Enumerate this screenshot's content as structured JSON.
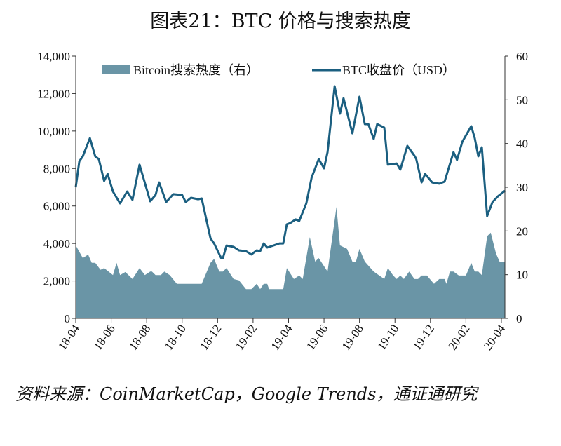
{
  "title": "图表21：BTC 价格与搜索热度",
  "source": "资料来源：CoinMarketCap，Google Trends，通证通研究",
  "colors": {
    "area": "#6a95a6",
    "line": "#1b5f80"
  },
  "chart_data": {
    "type": "area+line",
    "title": "图表21：BTC 价格与搜索热度",
    "x_unit": "months since 2018-04",
    "categories": [
      "18-04",
      "18-06",
      "18-08",
      "18-10",
      "18-12",
      "19-02",
      "19-04",
      "19-06",
      "19-08",
      "19-10",
      "19-12",
      "20-02",
      "20-04"
    ],
    "y_left": {
      "ticks": [
        "0",
        "2,000",
        "4,000",
        "6,000",
        "8,000",
        "10,000",
        "12,000",
        "14,000"
      ],
      "ylim": [
        0,
        14000
      ]
    },
    "y_right": {
      "ticks": [
        "0",
        "10",
        "20",
        "30",
        "40",
        "50",
        "60"
      ],
      "ylim": [
        0,
        60
      ]
    },
    "legend": {
      "placement": "top",
      "entries": [
        "Bitcoin搜索热度（右）",
        "BTC收盘价（USD）"
      ]
    },
    "series": [
      {
        "name": "Bitcoin搜索热度（右）",
        "type": "area",
        "axis": "right",
        "points": [
          [
            0,
            16.7
          ],
          [
            0.4,
            13.8
          ],
          [
            0.7,
            14.6
          ],
          [
            0.9,
            12.7
          ],
          [
            1.1,
            12.7
          ],
          [
            1.4,
            11.1
          ],
          [
            1.6,
            11.5
          ],
          [
            2.1,
            9.9
          ],
          [
            2.3,
            12.7
          ],
          [
            2.5,
            9.9
          ],
          [
            2.8,
            10.6
          ],
          [
            3.2,
            9.0
          ],
          [
            3.6,
            11.5
          ],
          [
            3.9,
            9.9
          ],
          [
            4.2,
            10.7
          ],
          [
            4.3,
            10.7
          ],
          [
            4.5,
            9.9
          ],
          [
            4.8,
            9.9
          ],
          [
            5.0,
            10.7
          ],
          [
            5.3,
            9.9
          ],
          [
            5.7,
            7.9
          ],
          [
            7.1,
            7.9
          ],
          [
            7.6,
            12.7
          ],
          [
            7.8,
            13.6
          ],
          [
            8.1,
            10.7
          ],
          [
            8.3,
            10.7
          ],
          [
            8.5,
            11.5
          ],
          [
            8.9,
            9.0
          ],
          [
            9.2,
            8.7
          ],
          [
            9.6,
            6.7
          ],
          [
            9.9,
            6.7
          ],
          [
            10.2,
            7.9
          ],
          [
            10.4,
            6.7
          ],
          [
            10.6,
            7.9
          ],
          [
            10.8,
            7.9
          ],
          [
            10.9,
            6.7
          ],
          [
            11.7,
            6.7
          ],
          [
            11.9,
            11.5
          ],
          [
            12.3,
            9.0
          ],
          [
            12.6,
            9.8
          ],
          [
            12.8,
            9.0
          ],
          [
            13.2,
            18.6
          ],
          [
            13.5,
            13.0
          ],
          [
            13.7,
            13.8
          ],
          [
            14.2,
            10.7
          ],
          [
            14.7,
            25.5
          ],
          [
            14.9,
            16.7
          ],
          [
            15.3,
            15.9
          ],
          [
            15.6,
            13.0
          ],
          [
            15.8,
            13.0
          ],
          [
            16.0,
            15.9
          ],
          [
            16.3,
            13.0
          ],
          [
            16.8,
            10.7
          ],
          [
            17.4,
            9.0
          ],
          [
            17.6,
            11.5
          ],
          [
            17.9,
            9.8
          ],
          [
            18.1,
            9.0
          ],
          [
            18.3,
            9.8
          ],
          [
            18.5,
            9.0
          ],
          [
            18.8,
            10.7
          ],
          [
            19.1,
            9.0
          ],
          [
            19.3,
            9.0
          ],
          [
            19.5,
            9.8
          ],
          [
            19.8,
            9.8
          ],
          [
            20.2,
            7.9
          ],
          [
            20.5,
            9.0
          ],
          [
            20.8,
            9.0
          ],
          [
            20.9,
            7.9
          ],
          [
            21.1,
            10.7
          ],
          [
            21.3,
            10.7
          ],
          [
            21.6,
            9.8
          ],
          [
            22.0,
            9.8
          ],
          [
            22.3,
            12.7
          ],
          [
            22.5,
            10.7
          ],
          [
            22.7,
            10.7
          ],
          [
            22.9,
            9.9
          ],
          [
            23.2,
            18.8
          ],
          [
            23.4,
            19.6
          ],
          [
            23.7,
            14.8
          ],
          [
            23.9,
            13.0
          ],
          [
            24.2,
            13.0
          ]
        ]
      },
      {
        "name": "BTC收盘价（USD）",
        "type": "line",
        "axis": "left",
        "points": [
          [
            0,
            7000
          ],
          [
            0.2,
            8380
          ],
          [
            0.4,
            8650
          ],
          [
            0.8,
            9620
          ],
          [
            1.1,
            8650
          ],
          [
            1.3,
            8500
          ],
          [
            1.6,
            7340
          ],
          [
            1.8,
            7710
          ],
          [
            2.1,
            6770
          ],
          [
            2.5,
            6140
          ],
          [
            2.9,
            6770
          ],
          [
            3.2,
            6330
          ],
          [
            3.6,
            8200
          ],
          [
            4.2,
            6250
          ],
          [
            4.5,
            6590
          ],
          [
            4.7,
            7260
          ],
          [
            5.1,
            6210
          ],
          [
            5.5,
            6630
          ],
          [
            6.0,
            6590
          ],
          [
            6.2,
            6210
          ],
          [
            6.5,
            6440
          ],
          [
            6.9,
            6360
          ],
          [
            7.1,
            6400
          ],
          [
            7.6,
            4270
          ],
          [
            7.8,
            4000
          ],
          [
            8.2,
            3220
          ],
          [
            8.3,
            3220
          ],
          [
            8.5,
            3890
          ],
          [
            8.9,
            3820
          ],
          [
            9.2,
            3630
          ],
          [
            9.6,
            3590
          ],
          [
            9.9,
            3410
          ],
          [
            10.2,
            3630
          ],
          [
            10.4,
            3590
          ],
          [
            10.6,
            4000
          ],
          [
            10.8,
            3780
          ],
          [
            11.5,
            4000
          ],
          [
            11.7,
            4000
          ],
          [
            11.9,
            5020
          ],
          [
            12.1,
            5090
          ],
          [
            12.4,
            5280
          ],
          [
            12.6,
            5200
          ],
          [
            13.0,
            6140
          ],
          [
            13.3,
            7520
          ],
          [
            13.7,
            8500
          ],
          [
            14.0,
            8010
          ],
          [
            14.2,
            8870
          ],
          [
            14.6,
            12390
          ],
          [
            14.9,
            10930
          ],
          [
            15.1,
            11750
          ],
          [
            15.6,
            9880
          ],
          [
            16.0,
            11830
          ],
          [
            16.3,
            10370
          ],
          [
            16.5,
            10370
          ],
          [
            16.8,
            9580
          ],
          [
            17.0,
            10370
          ],
          [
            17.4,
            10180
          ],
          [
            17.6,
            8200
          ],
          [
            18.1,
            8270
          ],
          [
            18.3,
            7940
          ],
          [
            18.7,
            9210
          ],
          [
            19.1,
            8680
          ],
          [
            19.2,
            8500
          ],
          [
            19.5,
            7260
          ],
          [
            19.7,
            7710
          ],
          [
            20.1,
            7260
          ],
          [
            20.5,
            7190
          ],
          [
            20.8,
            7300
          ],
          [
            21.3,
            8870
          ],
          [
            21.5,
            8460
          ],
          [
            21.8,
            9430
          ],
          [
            22.3,
            10260
          ],
          [
            22.5,
            9620
          ],
          [
            22.7,
            8650
          ],
          [
            22.9,
            9130
          ],
          [
            23.2,
            5460
          ],
          [
            23.5,
            6210
          ],
          [
            23.8,
            6510
          ],
          [
            24.2,
            6810
          ]
        ]
      }
    ]
  }
}
